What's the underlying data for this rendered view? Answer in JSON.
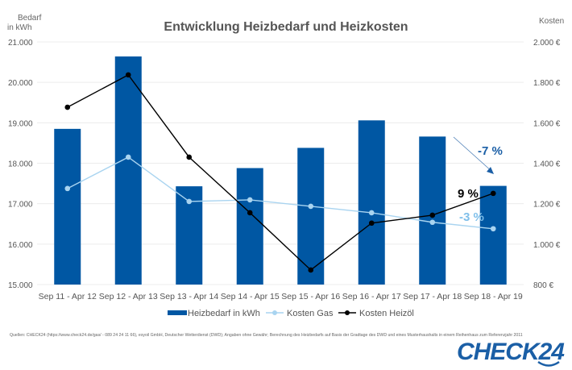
{
  "chart_data": {
    "type": "bar",
    "title": "Entwicklung Heizbedarf und Heizkosten",
    "ylabel_left": [
      "Bedarf",
      "in kWh"
    ],
    "ylabel_right": "Kosten",
    "categories": [
      "Sep 11 - Apr 12",
      "Sep 12 - Apr 13",
      "Sep 13 - Apr 14",
      "Sep 14 - Apr 15",
      "Sep 15 - Apr 16",
      "Sep 16 - Apr 17",
      "Sep 17 - Apr 18",
      "Sep 18 - Apr 19"
    ],
    "ylim_left": [
      15000,
      21000
    ],
    "ylim_right": [
      800,
      2000
    ],
    "left_ticks": [
      "15.000",
      "16.000",
      "17.000",
      "18.000",
      "19.000",
      "20.000",
      "21.000"
    ],
    "right_ticks": [
      "800 €",
      "1.000 €",
      "1.200 €",
      "1.400 €",
      "1.600 €",
      "1.800 €",
      "2.000 €"
    ],
    "grid": true,
    "legend_position": "bottom",
    "series": [
      {
        "name": "Heizbedarf in kWh",
        "type": "bar",
        "axis": "left",
        "color": "#0057a3",
        "values": [
          18850,
          20640,
          17430,
          17880,
          18380,
          19060,
          18660,
          17440
        ]
      },
      {
        "name": "Kosten Gas",
        "type": "line",
        "axis": "right",
        "color": "#a9d4f0",
        "values": [
          1275,
          1430,
          1211,
          1219,
          1187,
          1155,
          1108,
          1076
        ]
      },
      {
        "name": "Kosten Heizöl",
        "type": "line",
        "axis": "right",
        "color": "#000000",
        "values": [
          1677,
          1837,
          1430,
          1155,
          872,
          1104,
          1143,
          1251
        ]
      }
    ],
    "annotations": [
      {
        "text": "-7 %",
        "color": "#1b5fa6",
        "refers_to": "Heizbedarf in kWh"
      },
      {
        "text": "9 %",
        "color": "#000000",
        "refers_to": "Kosten Heizöl"
      },
      {
        "text": "-3 %",
        "color": "#7fbfea",
        "refers_to": "Kosten Gas"
      }
    ]
  },
  "source": "Quellen: CHECK24 (https://www.check24.de/gas/ - 089 24 24 11 66), esyoil GmbH, Deutscher Wetterdienst (DWD); Angaben ohne Gewähr; Berechnung des Heizbedarfs auf Basis der Gradtage des DWD und eines Musterhaushalts in einem Reihenhaus zum Referenzjahr 2011",
  "logo": "CHECK24"
}
